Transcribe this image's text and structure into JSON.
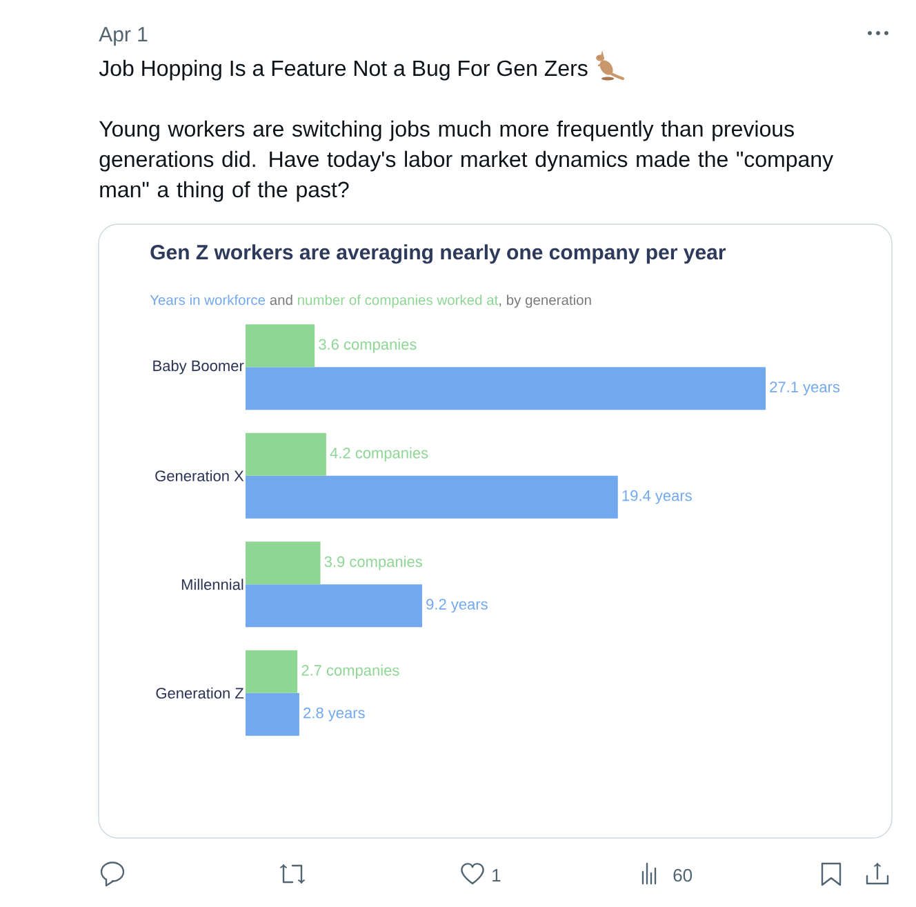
{
  "chart_data": {
    "type": "bar",
    "orientation": "horizontal",
    "title": "Gen Z workers are averaging nearly one company per year",
    "categories": [
      "Baby Boomer",
      "Generation X",
      "Millennial",
      "Generation Z"
    ],
    "series": [
      {
        "name": "Years in workforce",
        "color": "#72a9ee",
        "values": [
          27.1,
          19.4,
          9.2,
          2.8
        ],
        "value_labels": [
          "27.1 years",
          "19.4 years",
          "9.2 years",
          "2.8 years"
        ]
      },
      {
        "name": "number of companies worked at",
        "color": "#8ed694",
        "values": [
          3.6,
          4.2,
          3.9,
          2.7
        ],
        "value_labels": [
          "3.6 companies",
          "4.2 companies",
          "3.9 companies",
          "2.7 companies"
        ]
      }
    ],
    "legend": "top left",
    "tick_labels": "y",
    "annotations": [
      "Apr 1",
      "Job Hopping Is a Feature Not a Bug For Gen Zers",
      "Young workers are switching jobs much more frequently than previous generations did. Have today's labor market dynamics made the \"company man\" a thing of the past?",
      "and",
      ", by generation",
      "1",
      "60"
    ]
  }
}
